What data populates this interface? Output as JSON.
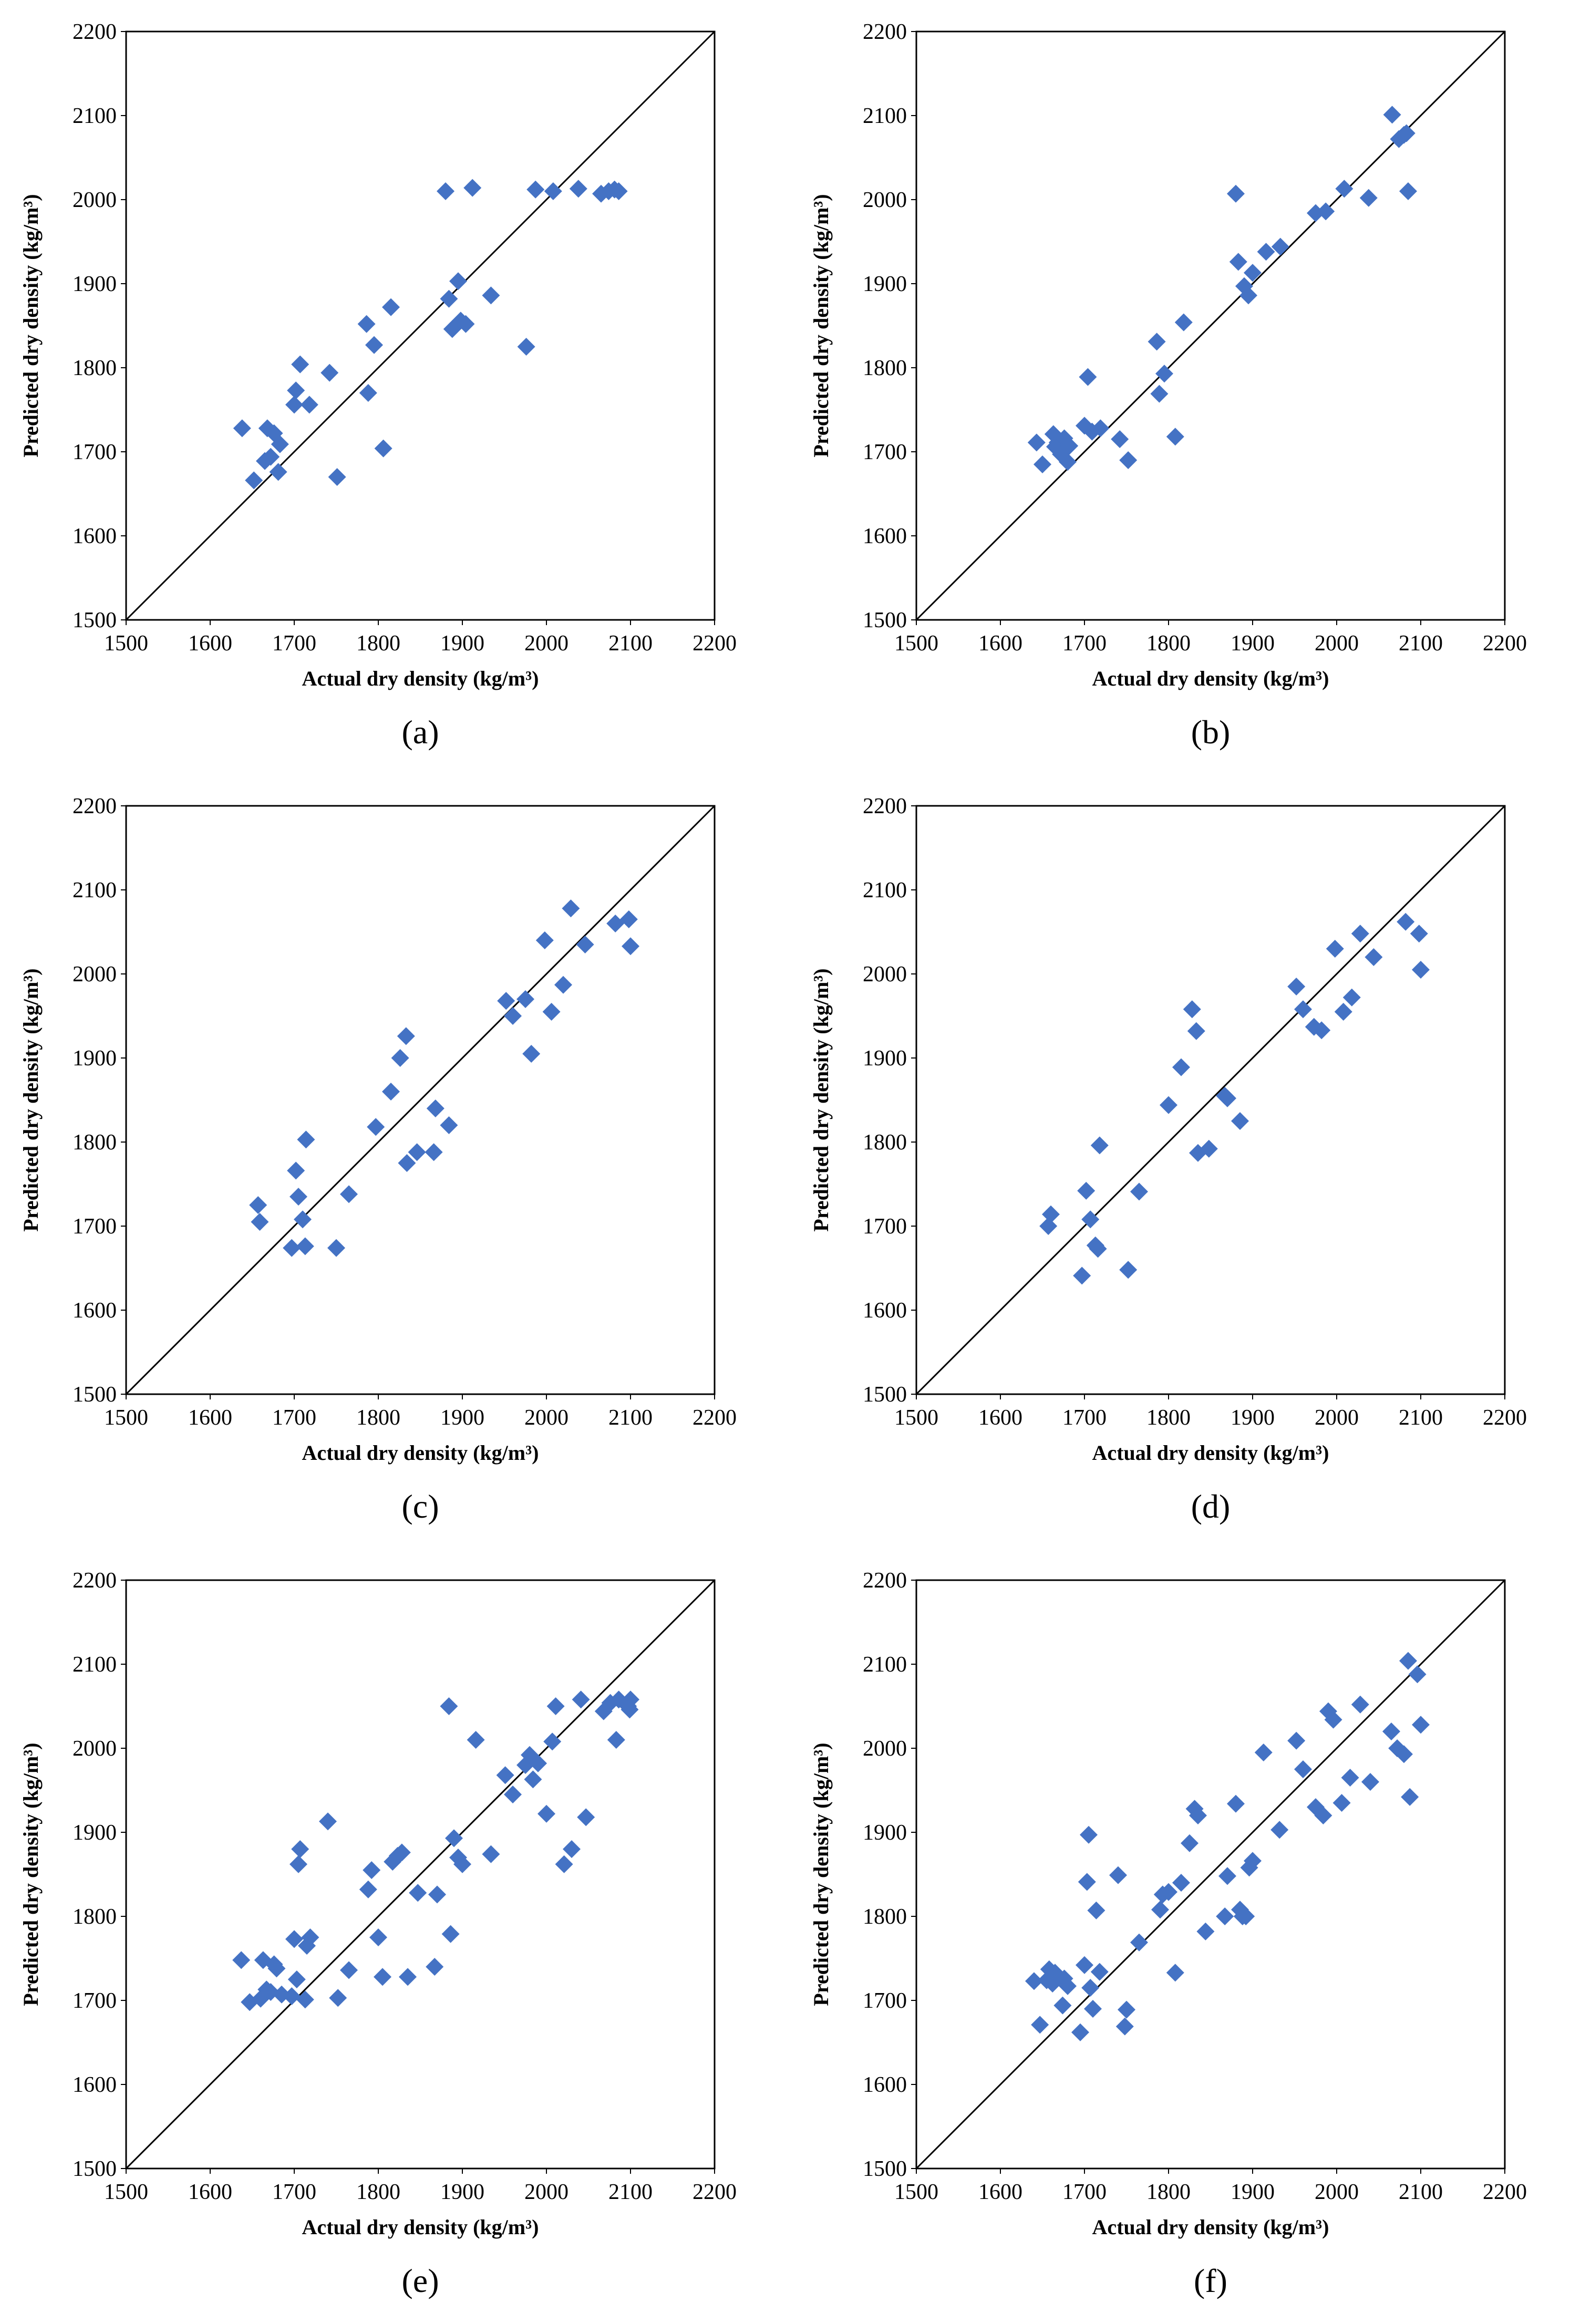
{
  "colors": {
    "marker": "#4472C4",
    "axes": "#000000",
    "diagonal": "#000000"
  },
  "chart_data": [
    {
      "type": "scatter",
      "caption": "(a)",
      "xlabel": "Actual dry density (kg/m³)",
      "ylabel": "Predicted dry density (kg/m³)",
      "xlim": [
        1500,
        2200
      ],
      "ylim": [
        1500,
        2200
      ],
      "xticks": [
        "1500",
        "1600",
        "1700",
        "1800",
        "1900",
        "2000",
        "2100",
        "2200"
      ],
      "yticks": [
        "1500",
        "1600",
        "1700",
        "1800",
        "1900",
        "2000",
        "2100",
        "2200"
      ],
      "reference_line": "y = x",
      "x": [
        1638,
        1652,
        1665,
        1668,
        1672,
        1676,
        1681,
        1683,
        1700,
        1702,
        1707,
        1718,
        1742,
        1751,
        1786,
        1788,
        1795,
        1806,
        1815,
        1880,
        1884,
        1888,
        1895,
        1898,
        1904,
        1912,
        1934,
        1976,
        1987,
        2008,
        2038,
        2065,
        2074,
        2081,
        2086
      ],
      "y": [
        1728,
        1666,
        1689,
        1728,
        1694,
        1722,
        1676,
        1709,
        1756,
        1773,
        1804,
        1756,
        1794,
        1670,
        1852,
        1770,
        1827,
        1704,
        1872,
        2010,
        1882,
        1846,
        1903,
        1856,
        1852,
        2014,
        1886,
        1825,
        2012,
        2010,
        2013,
        2007,
        2010,
        2012,
        2010
      ]
    },
    {
      "type": "scatter",
      "caption": "(b)",
      "xlabel": "Actual dry density (kg/m³)",
      "ylabel": "Predicted dry density (kg/m³)",
      "xlim": [
        1500,
        2200
      ],
      "ylim": [
        1500,
        2200
      ],
      "xticks": [
        "1500",
        "1600",
        "1700",
        "1800",
        "1900",
        "2000",
        "2100",
        "2200"
      ],
      "yticks": [
        "1500",
        "1600",
        "1700",
        "1800",
        "1900",
        "2000",
        "2100",
        "2200"
      ],
      "reference_line": "y = x",
      "x": [
        1643,
        1650,
        1663,
        1665,
        1668,
        1672,
        1676,
        1680,
        1682,
        1700,
        1704,
        1709,
        1719,
        1742,
        1752,
        1786,
        1789,
        1795,
        1808,
        1818,
        1880,
        1883,
        1890,
        1895,
        1900,
        1916,
        1933,
        1975,
        1987,
        2009,
        2038,
        2066,
        2074,
        2080,
        2083,
        2085
      ],
      "y": [
        1711,
        1685,
        1721,
        1706,
        1711,
        1697,
        1716,
        1688,
        1707,
        1731,
        1789,
        1724,
        1728,
        1715,
        1690,
        1831,
        1769,
        1793,
        1718,
        1854,
        2007,
        1926,
        1897,
        1886,
        1913,
        1938,
        1944,
        1984,
        1986,
        2013,
        2002,
        2101,
        2072,
        2077,
        2079,
        2010
      ]
    },
    {
      "type": "scatter",
      "caption": "(c)",
      "xlabel": "Actual dry density (kg/m³)",
      "ylabel": "Predicted dry density (kg/m³)",
      "xlim": [
        1500,
        2200
      ],
      "ylim": [
        1500,
        2200
      ],
      "xticks": [
        "1500",
        "1600",
        "1700",
        "1800",
        "1900",
        "2000",
        "2100",
        "2200"
      ],
      "yticks": [
        "1500",
        "1600",
        "1700",
        "1800",
        "1900",
        "2000",
        "2100",
        "2200"
      ],
      "reference_line": "y = x",
      "x": [
        1657,
        1659,
        1697,
        1702,
        1705,
        1710,
        1713,
        1714,
        1750,
        1765,
        1797,
        1815,
        1826,
        1833,
        1834,
        1846,
        1866,
        1868,
        1884,
        1952,
        1960,
        1975,
        1982,
        1998,
        2006,
        2020,
        2029,
        2046,
        2082,
        2098,
        2100
      ],
      "y": [
        1725,
        1705,
        1674,
        1766,
        1735,
        1708,
        1676,
        1803,
        1674,
        1738,
        1818,
        1860,
        1900,
        1926,
        1775,
        1788,
        1788,
        1840,
        1820,
        1968,
        1950,
        1970,
        1905,
        2040,
        1955,
        1987,
        2078,
        2035,
        2060,
        2065,
        2033
      ]
    },
    {
      "type": "scatter",
      "caption": "(d)",
      "xlabel": "Actual dry density (kg/m³)",
      "ylabel": "Predicted dry density (kg/m³)",
      "xlim": [
        1500,
        2200
      ],
      "ylim": [
        1500,
        2200
      ],
      "xticks": [
        "1500",
        "1600",
        "1700",
        "1800",
        "1900",
        "2000",
        "2100",
        "2200"
      ],
      "yticks": [
        "1500",
        "1600",
        "1700",
        "1800",
        "1900",
        "2000",
        "2100",
        "2200"
      ],
      "reference_line": "y = x",
      "x": [
        1657,
        1660,
        1697,
        1702,
        1707,
        1713,
        1716,
        1718,
        1752,
        1765,
        1800,
        1815,
        1828,
        1833,
        1835,
        1848,
        1867,
        1870,
        1885,
        1952,
        1960,
        1973,
        1982,
        1998,
        2008,
        2018,
        2028,
        2044,
        2082,
        2098,
        2100
      ],
      "y": [
        1700,
        1714,
        1641,
        1742,
        1708,
        1677,
        1673,
        1796,
        1648,
        1741,
        1844,
        1889,
        1958,
        1932,
        1787,
        1792,
        1855,
        1852,
        1825,
        1985,
        1958,
        1937,
        1933,
        2030,
        1955,
        1972,
        2048,
        2020,
        2062,
        2048,
        2005
      ]
    },
    {
      "type": "scatter",
      "caption": "(e)",
      "xlabel": "Actual dry density (kg/m³)",
      "ylabel": "Predicted dry density (kg/m³)",
      "xlim": [
        1500,
        2200
      ],
      "ylim": [
        1500,
        2200
      ],
      "xticks": [
        "1500",
        "1600",
        "1700",
        "1800",
        "1900",
        "2000",
        "2100",
        "2200"
      ],
      "yticks": [
        "1500",
        "1600",
        "1700",
        "1800",
        "1900",
        "2000",
        "2100",
        "2200"
      ],
      "reference_line": "y = x",
      "x": [
        1637,
        1647,
        1660,
        1663,
        1667,
        1672,
        1676,
        1679,
        1685,
        1697,
        1700,
        1703,
        1705,
        1707,
        1713,
        1715,
        1719,
        1740,
        1752,
        1765,
        1788,
        1792,
        1800,
        1805,
        1817,
        1823,
        1828,
        1835,
        1847,
        1867,
        1870,
        1884,
        1886,
        1890,
        1895,
        1900,
        1916,
        1934,
        1951,
        1960,
        1975,
        1980,
        1984,
        1990,
        2000,
        2007,
        2011,
        2021,
        2030,
        2041,
        2047,
        2068,
        2076,
        2083,
        2086,
        2097,
        2099,
        2100
      ],
      "y": [
        1748,
        1698,
        1702,
        1748,
        1713,
        1710,
        1743,
        1738,
        1707,
        1705,
        1773,
        1725,
        1862,
        1880,
        1701,
        1765,
        1775,
        1913,
        1703,
        1736,
        1832,
        1855,
        1775,
        1728,
        1865,
        1872,
        1876,
        1728,
        1828,
        1740,
        1826,
        2050,
        1779,
        1893,
        1870,
        1862,
        2010,
        1874,
        1968,
        1945,
        1980,
        1992,
        1963,
        1982,
        1922,
        2008,
        2050,
        1862,
        1880,
        2058,
        1918,
        2044,
        2054,
        2010,
        2058,
        2050,
        2046,
        2058
      ]
    },
    {
      "type": "scatter",
      "caption": "(f)",
      "xlabel": "Actual dry density (kg/m³)",
      "ylabel": "Predicted dry density (kg/m³)",
      "xlim": [
        1500,
        2200
      ],
      "ylim": [
        1500,
        2200
      ],
      "xticks": [
        "1500",
        "1600",
        "1700",
        "1800",
        "1900",
        "2000",
        "2100",
        "2200"
      ],
      "yticks": [
        "1500",
        "1600",
        "1700",
        "1800",
        "1900",
        "2000",
        "2100",
        "2200"
      ],
      "reference_line": "y = x",
      "x": [
        1640,
        1647,
        1655,
        1658,
        1662,
        1665,
        1668,
        1674,
        1676,
        1680,
        1695,
        1700,
        1703,
        1705,
        1707,
        1710,
        1714,
        1718,
        1740,
        1748,
        1750,
        1765,
        1790,
        1793,
        1800,
        1808,
        1815,
        1825,
        1831,
        1835,
        1844,
        1867,
        1870,
        1880,
        1885,
        1888,
        1892,
        1896,
        1900,
        1913,
        1932,
        1952,
        1960,
        1975,
        1984,
        1990,
        1996,
        2006,
        2016,
        2028,
        2040,
        2065,
        2072,
        2080,
        2085,
        2087,
        2096,
        2100
      ],
      "y": [
        1723,
        1671,
        1724,
        1737,
        1720,
        1733,
        1729,
        1694,
        1726,
        1717,
        1662,
        1742,
        1841,
        1897,
        1715,
        1690,
        1807,
        1734,
        1849,
        1669,
        1689,
        1769,
        1808,
        1826,
        1829,
        1733,
        1840,
        1887,
        1928,
        1920,
        1782,
        1800,
        1848,
        1934,
        1808,
        1800,
        1800,
        1858,
        1866,
        1995,
        1903,
        2009,
        1975,
        1930,
        1920,
        2044,
        2034,
        1935,
        1965,
        2052,
        1960,
        2020,
        2000,
        1993,
        2104,
        1942,
        2088,
        2028
      ]
    }
  ]
}
